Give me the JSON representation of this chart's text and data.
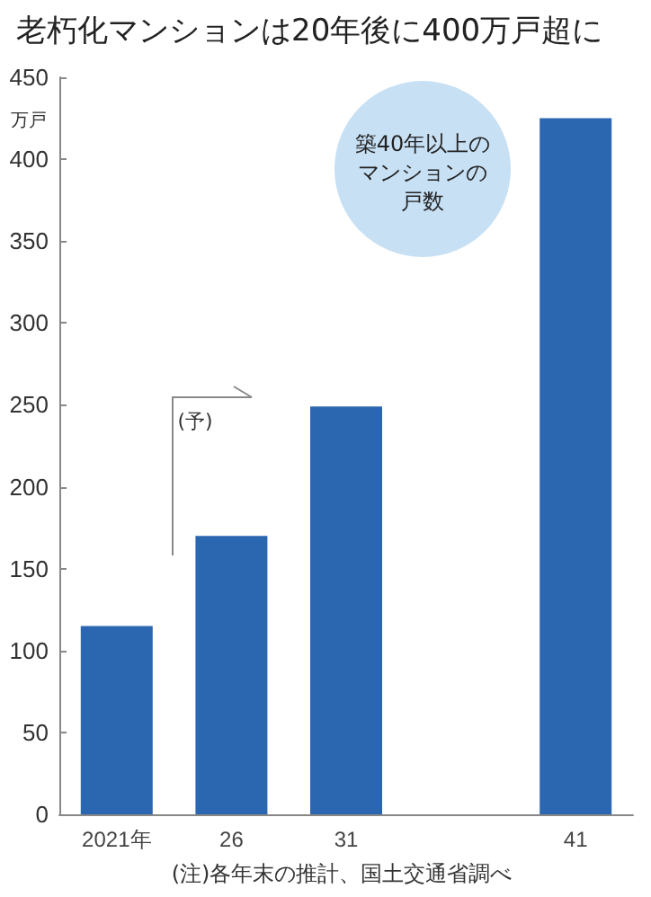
{
  "chart_data": {
    "type": "bar",
    "title": "老朽化マンションは20年後に400万戸超に",
    "ylabel": "万戸",
    "categories": [
      "2021年",
      "26",
      "31",
      null,
      "41"
    ],
    "values": [
      115,
      170,
      249,
      null,
      425
    ],
    "color": "#2b67b0",
    "ylim": [
      0,
      450
    ],
    "yticks": [
      0,
      50,
      100,
      150,
      200,
      250,
      300,
      350,
      400,
      450
    ],
    "grid": false,
    "annotations": [
      "築40年以上のマンションの戸数",
      "(予)",
      "(注)各年末の推計、国土交通省調べ"
    ]
  }
}
